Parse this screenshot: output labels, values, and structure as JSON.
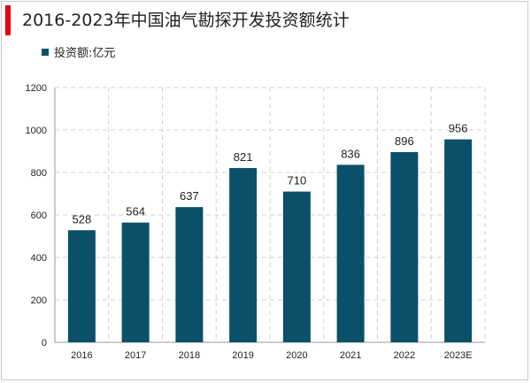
{
  "title": "2016-2023年中国油气勘探开发投资额统计",
  "colors": {
    "accent": "#e60012",
    "bar": "#0b5069",
    "grid": "#d0d0d0",
    "axis": "#9a9a9a"
  },
  "chart_data": {
    "type": "bar",
    "categories": [
      "2016",
      "2017",
      "2018",
      "2019",
      "2020",
      "2021",
      "2022",
      "2023E"
    ],
    "series": [
      {
        "name": "投资额:亿元",
        "values": [
          528,
          564,
          637,
          821,
          710,
          836,
          896,
          956
        ]
      }
    ],
    "ylim": [
      0,
      1200
    ],
    "yticks": [
      0,
      200,
      400,
      600,
      800,
      1000,
      1200
    ],
    "grid": true,
    "legend_position": "top-left",
    "xlabel": "",
    "ylabel": ""
  }
}
